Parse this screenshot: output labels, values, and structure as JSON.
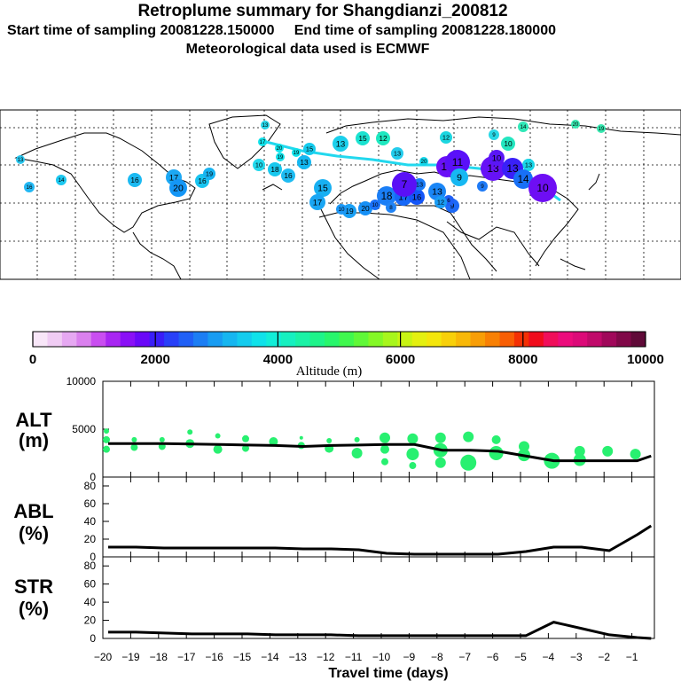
{
  "header": {
    "title": "Retroplume summary for Shangdianzi_200812",
    "start_label": "Start time of sampling 20081228.150000",
    "end_label": "End time of sampling 20081228.180000",
    "met_label": "Meteorological data used is ECMWF"
  },
  "colorbar": {
    "label": "Altitude (m)",
    "ticks": [
      "0",
      "2000",
      "4000",
      "6000",
      "8000",
      "10000"
    ],
    "colors": [
      "#f8e6f8",
      "#f0ccf4",
      "#e6a8f2",
      "#da80ee",
      "#c94ef0",
      "#a826f2",
      "#8a10f6",
      "#6a08f8",
      "#3a1ef8",
      "#2840f8",
      "#2060f6",
      "#1c7ef4",
      "#189cf2",
      "#16b6f0",
      "#14ccee",
      "#10e2ea",
      "#12eed8",
      "#16f0c0",
      "#1af2a6",
      "#1ef48a",
      "#28f66c",
      "#40f84e",
      "#60f838",
      "#84f826",
      "#a8f61c",
      "#c8f414",
      "#e4f010",
      "#f4e60c",
      "#f8d00a",
      "#f8b808",
      "#f89e06",
      "#f88004",
      "#f85e04",
      "#f43004",
      "#f00c1c",
      "#f00e5a",
      "#ec0c7c",
      "#dc0a78",
      "#c00a6a",
      "#a0085a",
      "#800848",
      "#600a38"
    ]
  },
  "map": {
    "point_labels": [
      "13",
      "13",
      "15",
      "13",
      "10",
      "13",
      "15",
      "12",
      "13",
      "12",
      "9",
      "10",
      "13",
      "16",
      "14",
      "16",
      "17",
      "20",
      "16",
      "19",
      "18",
      "16",
      "15",
      "17",
      "19",
      "20",
      "18",
      "17",
      "16",
      "13",
      "13",
      "14",
      "11",
      "9",
      "13",
      "13",
      "14",
      "10",
      "10",
      "9",
      "6",
      "9",
      "10",
      "8",
      "10",
      "7",
      "12",
      "14",
      "20",
      "19",
      "17",
      "20",
      "19",
      "19",
      "20"
    ]
  },
  "chart_data": [
    {
      "type": "line",
      "panel": "ALT",
      "ylabel_line1": "ALT",
      "ylabel_line2": "(m)",
      "ylim": [
        0,
        10000
      ],
      "yticks": [
        "10000",
        "5000",
        "0"
      ],
      "x": [
        -20,
        -19,
        -18,
        -17,
        -16,
        -15,
        -14,
        -13,
        -12,
        -11,
        -10,
        -9,
        -8,
        -7,
        -6,
        -5,
        -4,
        -3,
        -2,
        -1,
        -0.5
      ],
      "values": [
        3500,
        3500,
        3500,
        3450,
        3400,
        3350,
        3300,
        3200,
        3300,
        3350,
        3400,
        3400,
        2800,
        2800,
        2700,
        2200,
        1700,
        1700,
        1700,
        1700,
        2200
      ],
      "scatter_points": [
        {
          "x": -20,
          "y": 4800
        },
        {
          "x": -20,
          "y": 3900
        },
        {
          "x": -20,
          "y": 2900
        },
        {
          "x": -19,
          "y": 3100
        },
        {
          "x": -19,
          "y": 3900
        },
        {
          "x": -18,
          "y": 3200
        },
        {
          "x": -18,
          "y": 3900
        },
        {
          "x": -17,
          "y": 4700
        },
        {
          "x": -17,
          "y": 3500
        },
        {
          "x": -16,
          "y": 4300
        },
        {
          "x": -16,
          "y": 2900
        },
        {
          "x": -15,
          "y": 4000
        },
        {
          "x": -15,
          "y": 3000
        },
        {
          "x": -14,
          "y": 3700
        },
        {
          "x": -13,
          "y": 4100
        },
        {
          "x": -13,
          "y": 3300
        },
        {
          "x": -12,
          "y": 3800
        },
        {
          "x": -12,
          "y": 3000
        },
        {
          "x": -11,
          "y": 3900
        },
        {
          "x": -11,
          "y": 2500
        },
        {
          "x": -10,
          "y": 4100
        },
        {
          "x": -10,
          "y": 2900
        },
        {
          "x": -10,
          "y": 1600
        },
        {
          "x": -9,
          "y": 4000
        },
        {
          "x": -9,
          "y": 2400
        },
        {
          "x": -9,
          "y": 1200
        },
        {
          "x": -8,
          "y": 4100
        },
        {
          "x": -8,
          "y": 2800
        },
        {
          "x": -8,
          "y": 1500
        },
        {
          "x": -7,
          "y": 4200
        },
        {
          "x": -7,
          "y": 1500
        },
        {
          "x": -6,
          "y": 3900
        },
        {
          "x": -6,
          "y": 2500
        },
        {
          "x": -5,
          "y": 3200
        },
        {
          "x": -5,
          "y": 2300
        },
        {
          "x": -4,
          "y": 1700
        },
        {
          "x": -3,
          "y": 2700
        },
        {
          "x": -3,
          "y": 1800
        },
        {
          "x": -2,
          "y": 2700
        },
        {
          "x": -1,
          "y": 2400
        }
      ]
    },
    {
      "type": "line",
      "panel": "ABL",
      "ylabel_line1": "ABL",
      "ylabel_line2": "(%)",
      "ylim": [
        0,
        90
      ],
      "yticks": [
        "80",
        "60",
        "40",
        "20",
        "0"
      ],
      "x": [
        -20,
        -19,
        -18,
        -17,
        -16,
        -15,
        -14,
        -13,
        -12,
        -11,
        -10,
        -9,
        -8,
        -7,
        -6,
        -5,
        -4,
        -3,
        -2,
        -1,
        -0.5
      ],
      "values": [
        11,
        11,
        10,
        10,
        10,
        10,
        10,
        9,
        9,
        8,
        4,
        3,
        3,
        3,
        3,
        6,
        11,
        11,
        7,
        25,
        35
      ]
    },
    {
      "type": "line",
      "panel": "STR",
      "ylabel_line1": "STR",
      "ylabel_line2": "(%)",
      "ylim": [
        0,
        90
      ],
      "yticks": [
        "80",
        "60",
        "40",
        "20",
        "0"
      ],
      "x": [
        -20,
        -19,
        -18,
        -17,
        -16,
        -15,
        -14,
        -13,
        -12,
        -11,
        -10,
        -9,
        -8,
        -7,
        -6,
        -5,
        -4,
        -3,
        -2,
        -1,
        -0.5
      ],
      "values": [
        7,
        7,
        6,
        5,
        5,
        5,
        4,
        4,
        4,
        3,
        3,
        3,
        3,
        3,
        3,
        3,
        18,
        11,
        4,
        1,
        0
      ],
      "xlabel": "Travel time (days)",
      "xticks": [
        "−20",
        "−19",
        "−18",
        "−17",
        "−16",
        "−15",
        "−14",
        "−13",
        "−12",
        "−11",
        "−10",
        "−9",
        "−8",
        "−7",
        "−6",
        "−5",
        "−4",
        "−3",
        "−2",
        "−1"
      ]
    }
  ]
}
